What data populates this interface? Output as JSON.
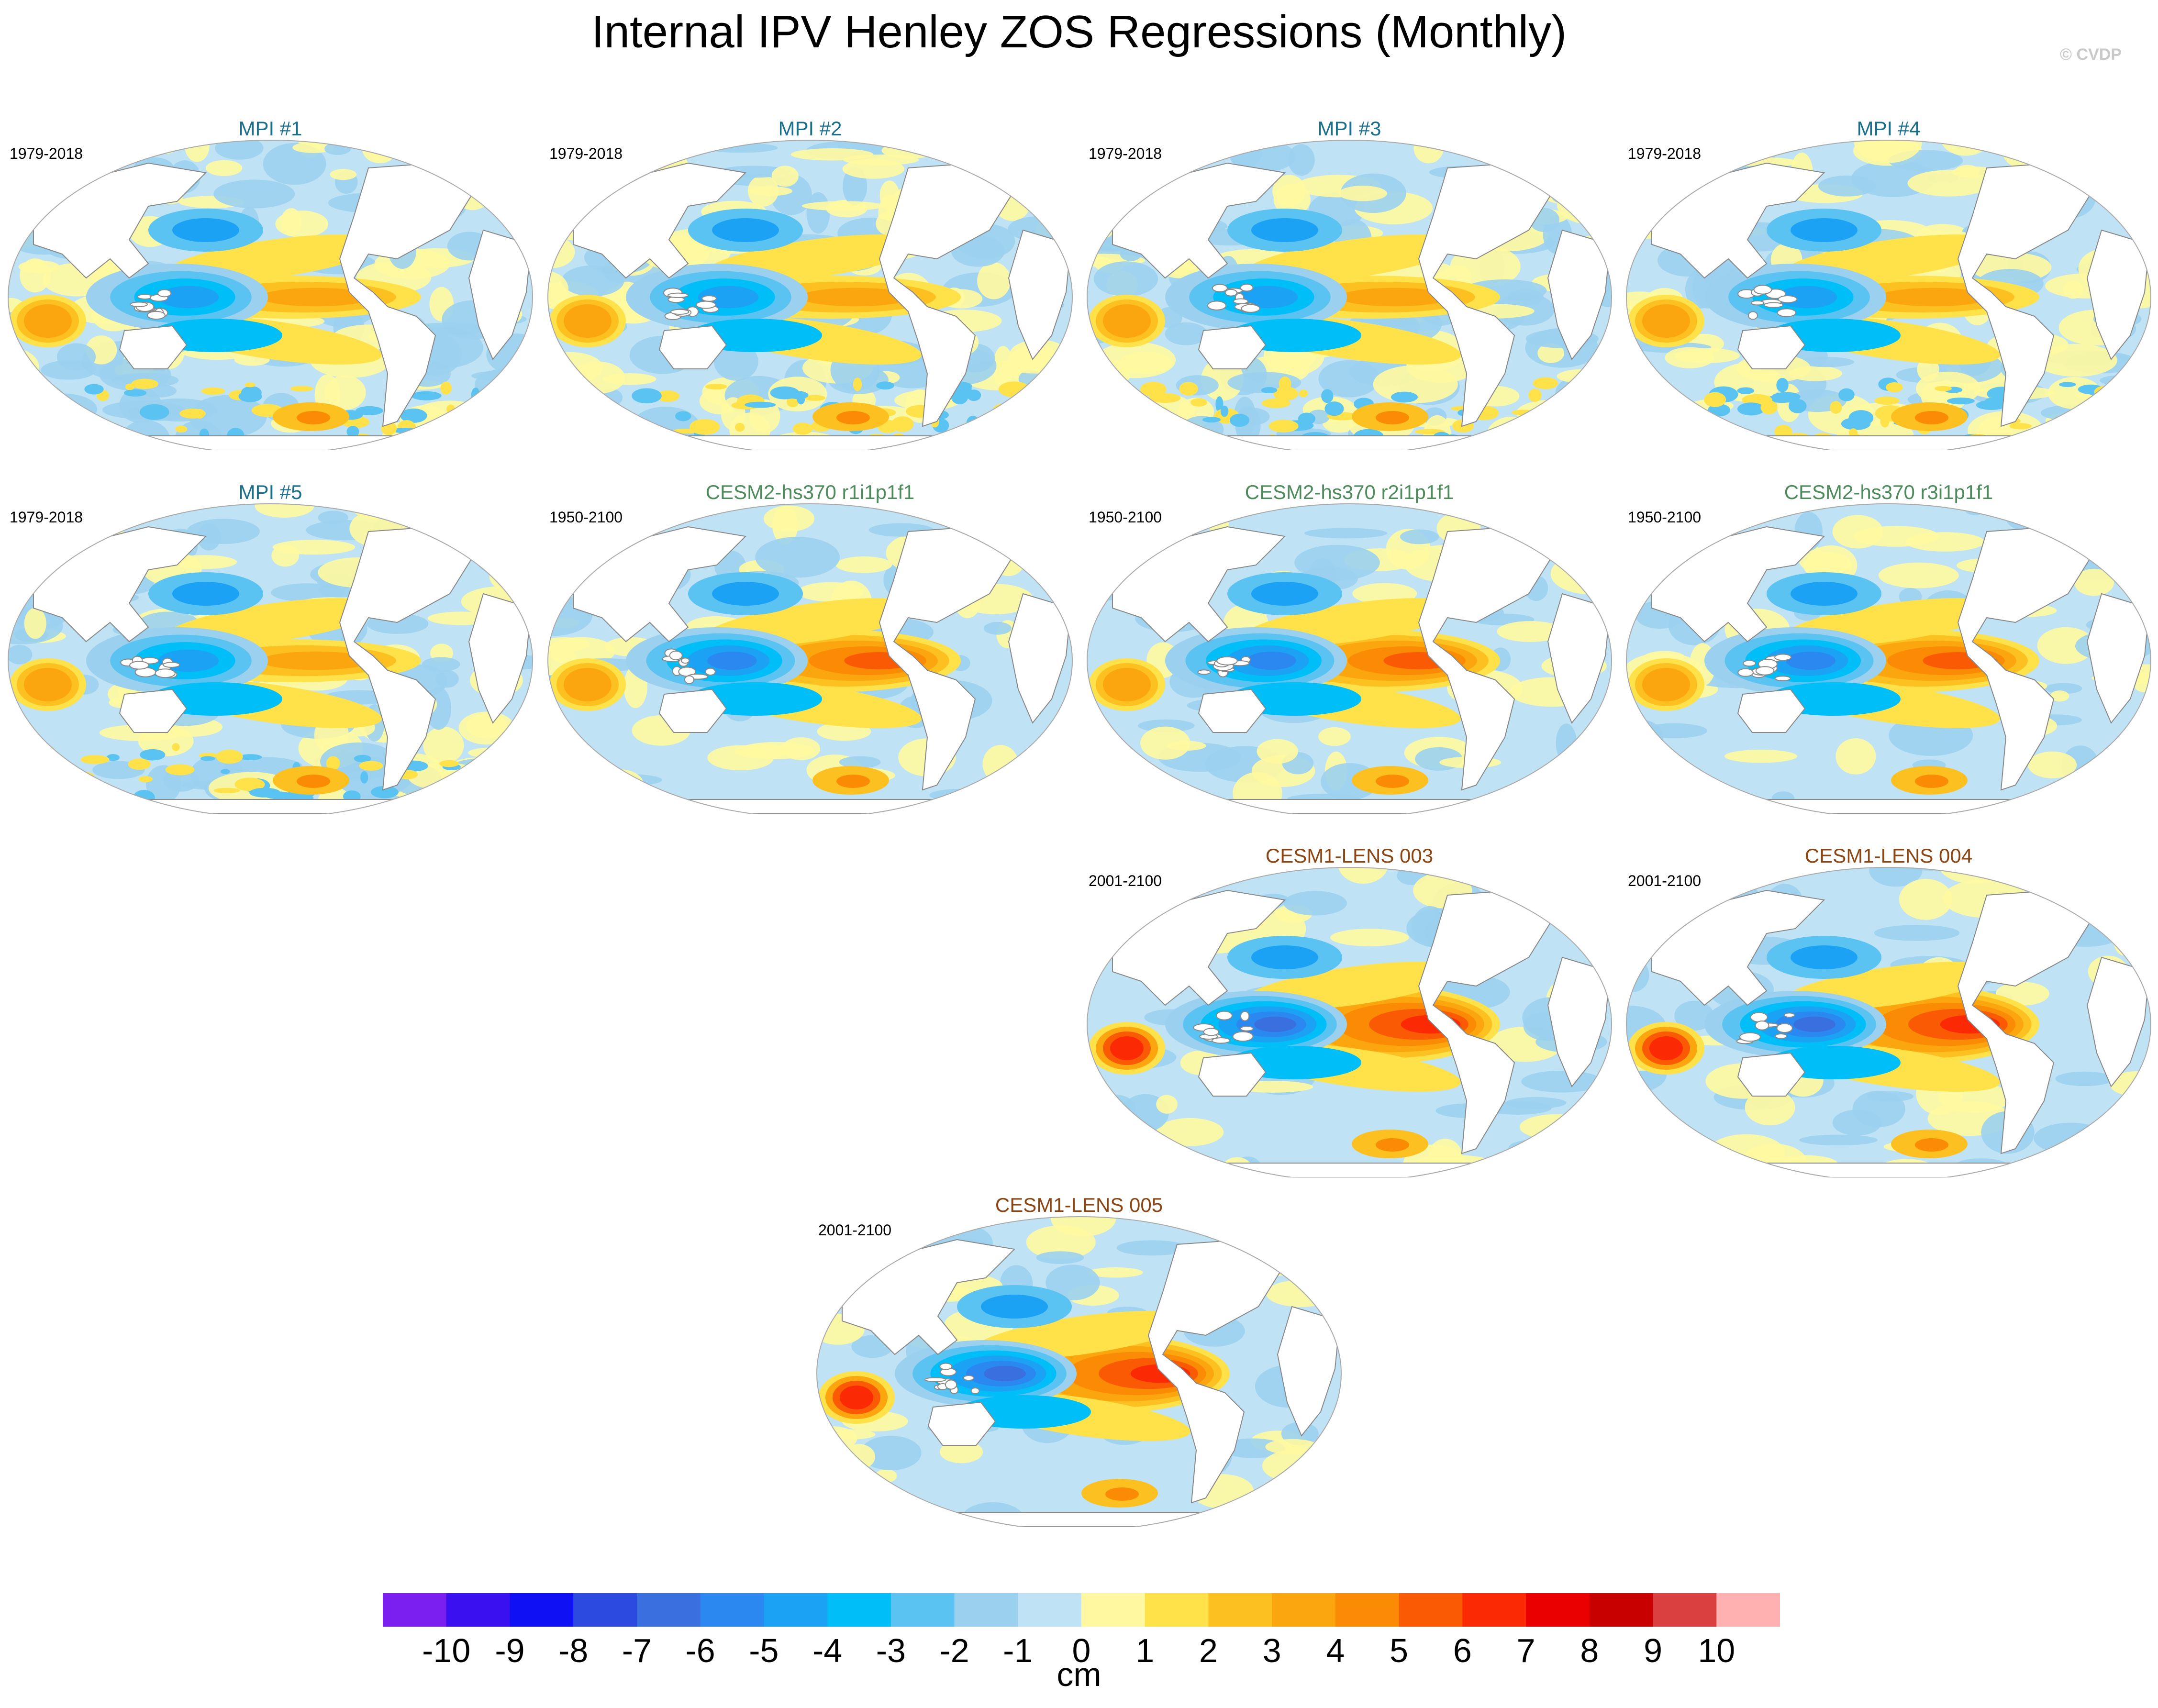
{
  "title": "Internal IPV Henley ZOS Regressions (Monthly)",
  "credit": "© CVDP",
  "colors": {
    "mpi": "#1a6f8c",
    "cesm2": "#4d8b5c",
    "cesm1": "#8b4513",
    "land": "#ffffff",
    "coast": "#888888"
  },
  "panels": [
    {
      "title": "MPI #1",
      "years": "1979-2018",
      "group": "mpi",
      "pattern": "noisy"
    },
    {
      "title": "MPI #2",
      "years": "1979-2018",
      "group": "mpi",
      "pattern": "noisy"
    },
    {
      "title": "MPI #3",
      "years": "1979-2018",
      "group": "mpi",
      "pattern": "noisy"
    },
    {
      "title": "MPI #4",
      "years": "1979-2018",
      "group": "mpi",
      "pattern": "noisy"
    },
    {
      "title": "MPI #5",
      "years": "1979-2018",
      "group": "mpi",
      "pattern": "noisy"
    },
    {
      "title": "CESM2-hs370 r1i1p1f1",
      "years": "1950-2100",
      "group": "cesm2",
      "pattern": "smooth"
    },
    {
      "title": "CESM2-hs370 r2i1p1f1",
      "years": "1950-2100",
      "group": "cesm2",
      "pattern": "smooth"
    },
    {
      "title": "CESM2-hs370 r3i1p1f1",
      "years": "1950-2100",
      "group": "cesm2",
      "pattern": "smooth"
    },
    {
      "title": "CESM1-LENS 003",
      "years": "2001-2100",
      "group": "cesm1",
      "pattern": "strong"
    },
    {
      "title": "CESM1-LENS 004",
      "years": "2001-2100",
      "group": "cesm1",
      "pattern": "strong"
    },
    {
      "title": "CESM1-LENS 005",
      "years": "2001-2100",
      "group": "cesm1",
      "pattern": "strong"
    }
  ],
  "colorbar": {
    "units": "cm",
    "labels": [
      "-10",
      "-9",
      "-8",
      "-7",
      "-6",
      "-5",
      "-4",
      "-3",
      "-2",
      "-1",
      "0",
      "1",
      "2",
      "3",
      "4",
      "5",
      "6",
      "7",
      "8",
      "9",
      "10"
    ],
    "colors": [
      "#7b1ff0",
      "#3b10f0",
      "#1010f5",
      "#2c4ae0",
      "#3a6fe0",
      "#2a88f0",
      "#1ba2f5",
      "#00bff8",
      "#5ac3f2",
      "#9bd0ee",
      "#bfe3f5",
      "#fff8a0",
      "#ffe24a",
      "#fcc020",
      "#fba60e",
      "#fb8a04",
      "#fb5a04",
      "#fb2a04",
      "#ea0000",
      "#c80000",
      "#da4040",
      "#ffb0b0"
    ]
  }
}
